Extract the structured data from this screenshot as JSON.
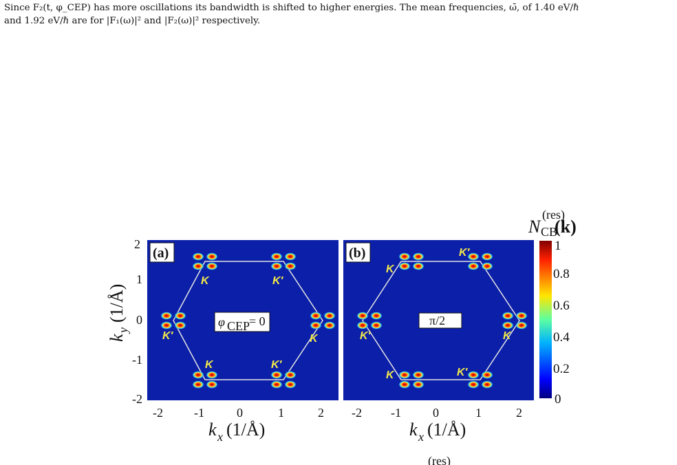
{
  "paragraph": {
    "line1": "Since F₂(t, φ_CEP) has more oscillations its bandwidth is shifted to higher energies. The mean frequencies, ω̄, of 1.40 eV/ℏ",
    "line2": "and 1.92 eV/ℏ are for |F₁(ω)|² and |F₂(ω)|² respectively."
  },
  "figure": {
    "panels": [
      {
        "label": "(a)",
        "annotation_symbol": "φ",
        "annotation_sub": "CEP",
        "annotation_value": "= 0",
        "k_labels": [
          "K",
          "K′",
          "K′",
          "K",
          "K",
          "K′"
        ]
      },
      {
        "label": "(b)",
        "annotation_text": "π/2",
        "k_labels": [
          "K",
          "K′",
          "K′",
          "K",
          "K",
          "K′"
        ]
      }
    ],
    "x_axis": {
      "label_main": "k",
      "label_sub": "x",
      "label_unit": "(1/Å)",
      "ticks": [
        "-2",
        "-1",
        "0",
        "1",
        "2"
      ]
    },
    "y_axis": {
      "label_main": "k",
      "label_sub": "y",
      "label_unit": "(1/Å)",
      "ticks": [
        "2",
        "1",
        "0",
        "-1",
        "-2"
      ]
    },
    "colorbar": {
      "title_main": "N",
      "title_sub": "CB",
      "title_sup": "(res)",
      "title_arg": "(k)",
      "ticks": [
        "1",
        "0.8",
        "0.6",
        "0.4",
        "0.2",
        "0"
      ]
    },
    "colors": {
      "background": "#0b1fa8",
      "hexagon": "#e6e6e6",
      "k_label": "#f2e94a"
    }
  },
  "bottom_fragment": "(res)"
}
